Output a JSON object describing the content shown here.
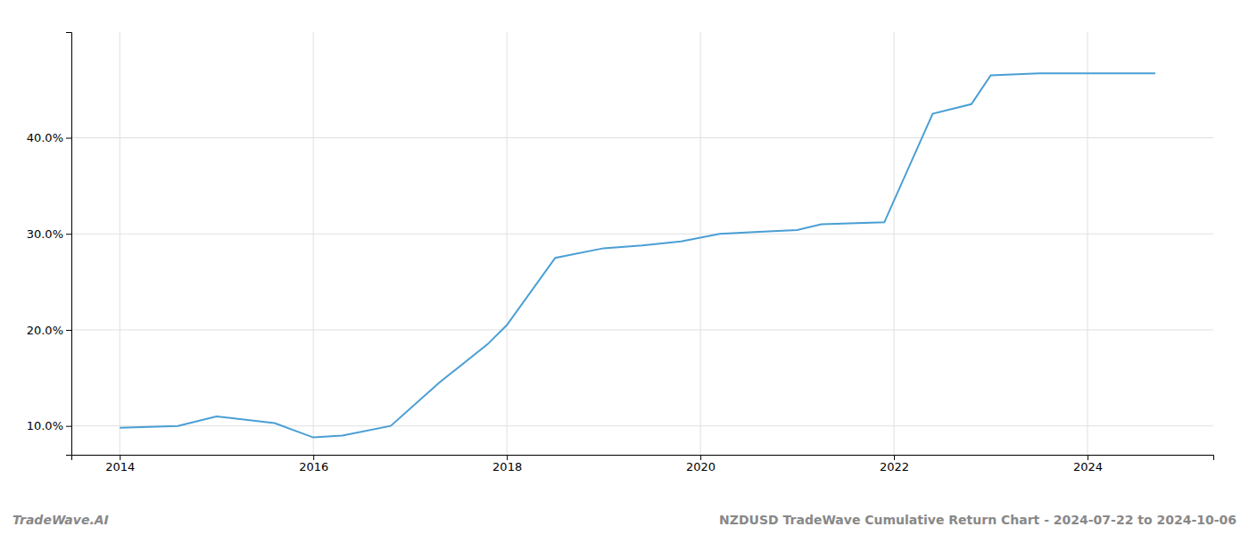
{
  "chart_data": {
    "type": "line",
    "title": "NZDUSD TradeWave Cumulative Return Chart - 2024-07-22 to 2024-10-06",
    "annotations": [
      "TradeWave.AI"
    ],
    "x": [
      2014.0,
      2014.6,
      2015.0,
      2015.6,
      2016.0,
      2016.3,
      2016.8,
      2017.3,
      2017.8,
      2018.0,
      2018.5,
      2019.0,
      2019.4,
      2019.8,
      2020.2,
      2020.6,
      2021.0,
      2021.25,
      2021.9,
      2022.4,
      2022.8,
      2023.0,
      2023.5,
      2024.0,
      2024.7
    ],
    "values": [
      9.8,
      10.0,
      11.0,
      10.3,
      8.8,
      9.0,
      10.0,
      14.5,
      18.5,
      20.5,
      27.5,
      28.5,
      28.8,
      29.2,
      30.0,
      30.2,
      30.4,
      31.0,
      31.2,
      42.5,
      43.5,
      46.5,
      46.7,
      46.7,
      46.7
    ],
    "color": "#4a9fd4",
    "xlim": [
      2013.5,
      2025.3
    ],
    "xticks": [
      2014,
      2016,
      2018,
      2020,
      2022,
      2024
    ],
    "ylim": [
      7.0,
      51.0
    ],
    "yticks": [
      {
        "value": 10.0,
        "label": "10.0%"
      },
      {
        "value": 20.0,
        "label": "20.0%"
      },
      {
        "value": 30.0,
        "label": "30.0%"
      },
      {
        "value": 40.0,
        "label": "40.0%"
      }
    ],
    "grid": true
  }
}
